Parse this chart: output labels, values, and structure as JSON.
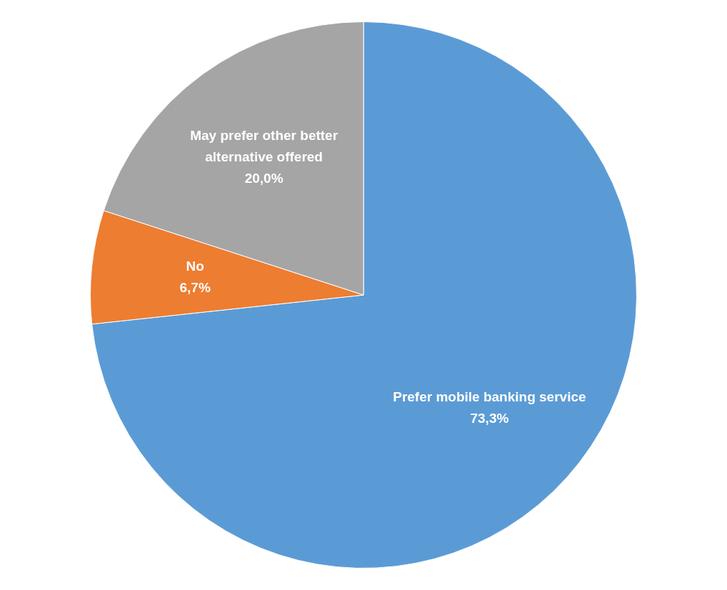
{
  "chart_data": {
    "type": "pie",
    "categories": [
      "Prefer mobile banking service",
      "No",
      "May prefer other better alternative offered"
    ],
    "values": [
      73.3,
      6.7,
      20.0
    ],
    "value_labels": [
      "73,3%",
      "6,7%",
      "20,0%"
    ],
    "colors": [
      "#5b9bd5",
      "#ed7d31",
      "#a5a5a5"
    ],
    "legend": false
  }
}
